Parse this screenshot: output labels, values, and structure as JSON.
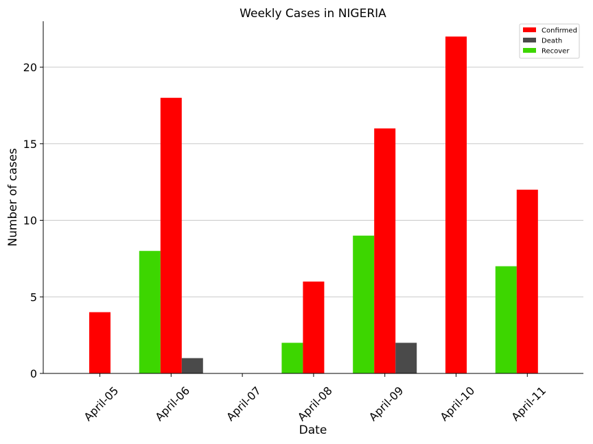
{
  "chart_data": {
    "type": "bar",
    "title": "Weekly Cases in NIGERIA",
    "xlabel": "Date",
    "ylabel": "Number of cases",
    "categories": [
      "April-05",
      "April-06",
      "April-07",
      "April-08",
      "April-09",
      "April-10",
      "April-11"
    ],
    "series": [
      {
        "name": "Recover",
        "values": [
          0,
          8,
          0,
          2,
          9,
          0,
          7
        ],
        "color": "#3dd600"
      },
      {
        "name": "Confirmed",
        "values": [
          4,
          18,
          0,
          6,
          16,
          22,
          12
        ],
        "color": "#ff0000"
      },
      {
        "name": "Death",
        "values": [
          0,
          1,
          0,
          0,
          2,
          0,
          0
        ],
        "color": "#4a4a4a"
      }
    ],
    "legend_order": [
      "Confirmed",
      "Death",
      "Recover"
    ],
    "legend_position": "top-right",
    "ylim": [
      0,
      23
    ],
    "yticks": [
      0,
      5,
      10,
      15,
      20
    ],
    "grid": "horizontal"
  }
}
